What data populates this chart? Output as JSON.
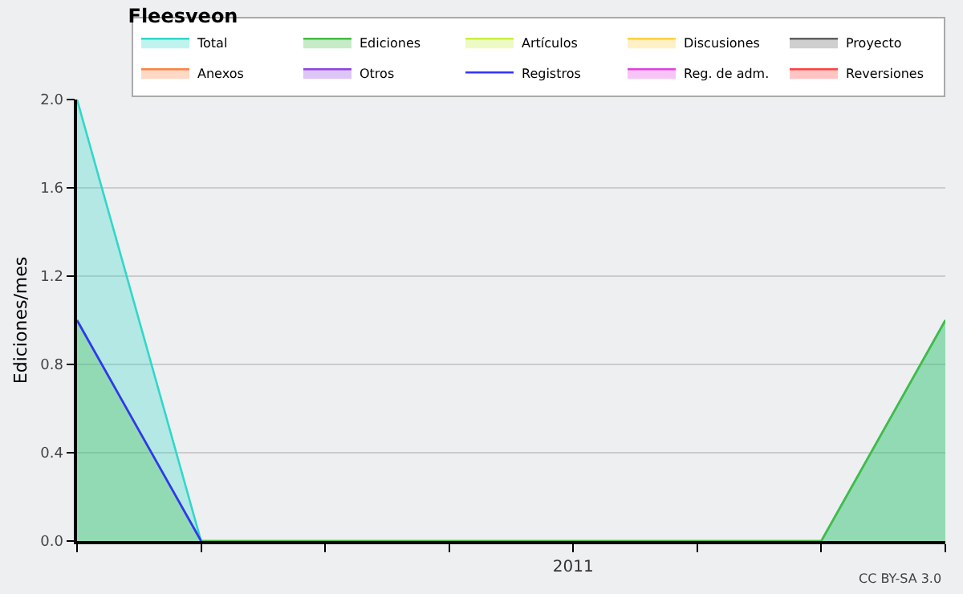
{
  "chart_data": {
    "type": "area",
    "title": "Fleesveon",
    "ylabel": "Ediciones/mes",
    "categories": [
      null,
      null,
      null,
      null,
      "2011",
      null,
      null,
      null
    ],
    "ylim": [
      0,
      2
    ],
    "yticks": [
      {
        "value": 0,
        "label": "0.0"
      },
      {
        "value": 0.4,
        "label": "0.4"
      },
      {
        "value": 0.8,
        "label": "0.8"
      },
      {
        "value": 1.2,
        "label": "1.2"
      },
      {
        "value": 1.6,
        "label": "1.6"
      },
      {
        "value": 2,
        "label": "2.0"
      }
    ],
    "grid": "y",
    "legend": "top right",
    "series": [
      {
        "name": "Total",
        "color": "#30d8c8",
        "values": [
          2,
          0,
          0,
          0,
          0,
          0,
          0,
          1
        ]
      },
      {
        "name": "Ediciones",
        "color": "#44bb44",
        "values": [
          1,
          0,
          0,
          0,
          0,
          0,
          0,
          1
        ]
      },
      {
        "name": "Artículos",
        "color": "#c8f040",
        "values": [
          null,
          null,
          null,
          null,
          null,
          null,
          null,
          null
        ]
      },
      {
        "name": "Discusiones",
        "color": "#ffd040",
        "values": [
          null,
          null,
          null,
          null,
          null,
          null,
          null,
          null
        ]
      },
      {
        "name": "Proyecto",
        "color": "#606060",
        "values": [
          null,
          null,
          null,
          null,
          null,
          null,
          null,
          null
        ]
      },
      {
        "name": "Anexos",
        "color": "#ff8040",
        "values": [
          null,
          null,
          null,
          null,
          null,
          null,
          null,
          null
        ]
      },
      {
        "name": "Otros",
        "color": "#9040e0",
        "values": [
          null,
          null,
          null,
          null,
          null,
          null,
          null,
          null
        ]
      },
      {
        "name": "Registros",
        "type": "line",
        "color": "#3333ff",
        "values": [
          1,
          0,
          null,
          null,
          null,
          null,
          null,
          null
        ]
      },
      {
        "name": "Reg. de adm.",
        "color": "#e040e0",
        "values": [
          null,
          null,
          null,
          null,
          null,
          null,
          null,
          null
        ]
      },
      {
        "name": "Reversiones",
        "color": "#ff4040",
        "values": [
          null,
          null,
          null,
          null,
          null,
          null,
          null,
          null
        ]
      }
    ],
    "annotations": [
      "CC BY-SA 3.0"
    ]
  }
}
